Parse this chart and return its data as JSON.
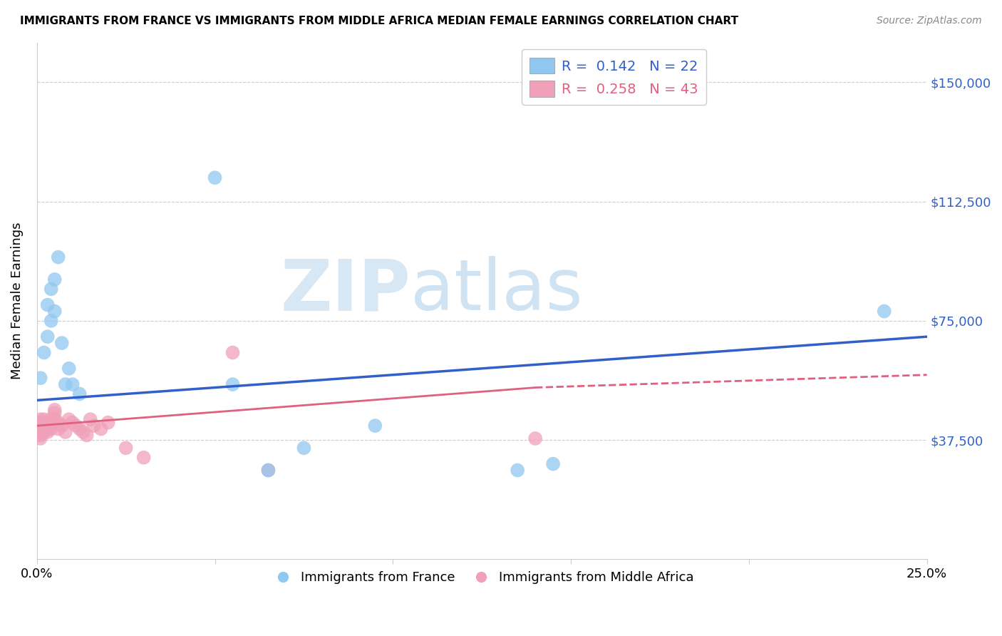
{
  "title": "IMMIGRANTS FROM FRANCE VS IMMIGRANTS FROM MIDDLE AFRICA MEDIAN FEMALE EARNINGS CORRELATION CHART",
  "source": "Source: ZipAtlas.com",
  "ylabel": "Median Female Earnings",
  "xlim": [
    0.0,
    0.25
  ],
  "ylim": [
    0,
    162500
  ],
  "legend_france_R": "0.142",
  "legend_france_N": "22",
  "legend_africa_R": "0.258",
  "legend_africa_N": "43",
  "blue_color": "#90c8f0",
  "pink_color": "#f0a0b8",
  "blue_line_color": "#3060c8",
  "pink_line_color": "#e06080",
  "watermark_zip": "ZIP",
  "watermark_atlas": "atlas",
  "france_x": [
    0.001,
    0.002,
    0.003,
    0.003,
    0.004,
    0.004,
    0.005,
    0.005,
    0.006,
    0.007,
    0.008,
    0.009,
    0.01,
    0.012,
    0.05,
    0.055,
    0.065,
    0.075,
    0.095,
    0.135,
    0.145,
    0.238
  ],
  "france_y": [
    57000,
    65000,
    70000,
    80000,
    75000,
    85000,
    88000,
    78000,
    95000,
    68000,
    55000,
    60000,
    55000,
    52000,
    120000,
    55000,
    28000,
    35000,
    42000,
    28000,
    30000,
    78000
  ],
  "africa_x": [
    0.001,
    0.001,
    0.001,
    0.001,
    0.001,
    0.001,
    0.001,
    0.001,
    0.001,
    0.002,
    0.002,
    0.002,
    0.002,
    0.002,
    0.003,
    0.003,
    0.003,
    0.003,
    0.004,
    0.004,
    0.004,
    0.005,
    0.005,
    0.005,
    0.006,
    0.006,
    0.007,
    0.008,
    0.009,
    0.01,
    0.011,
    0.012,
    0.013,
    0.014,
    0.015,
    0.016,
    0.018,
    0.02,
    0.025,
    0.03,
    0.055,
    0.065,
    0.14
  ],
  "africa_y": [
    42000,
    43000,
    44000,
    43000,
    42000,
    41000,
    40000,
    39000,
    38000,
    42000,
    44000,
    43000,
    41000,
    40000,
    43000,
    42000,
    41000,
    40000,
    44000,
    42000,
    41000,
    47000,
    46000,
    44000,
    43000,
    41000,
    42000,
    40000,
    44000,
    43000,
    42000,
    41000,
    40000,
    39000,
    44000,
    42000,
    41000,
    43000,
    35000,
    32000,
    65000,
    28000,
    38000
  ],
  "ytick_vals": [
    37500,
    75000,
    112500,
    150000
  ],
  "ytick_labels": [
    "$37,500",
    "$75,000",
    "$112,500",
    "$150,000"
  ]
}
